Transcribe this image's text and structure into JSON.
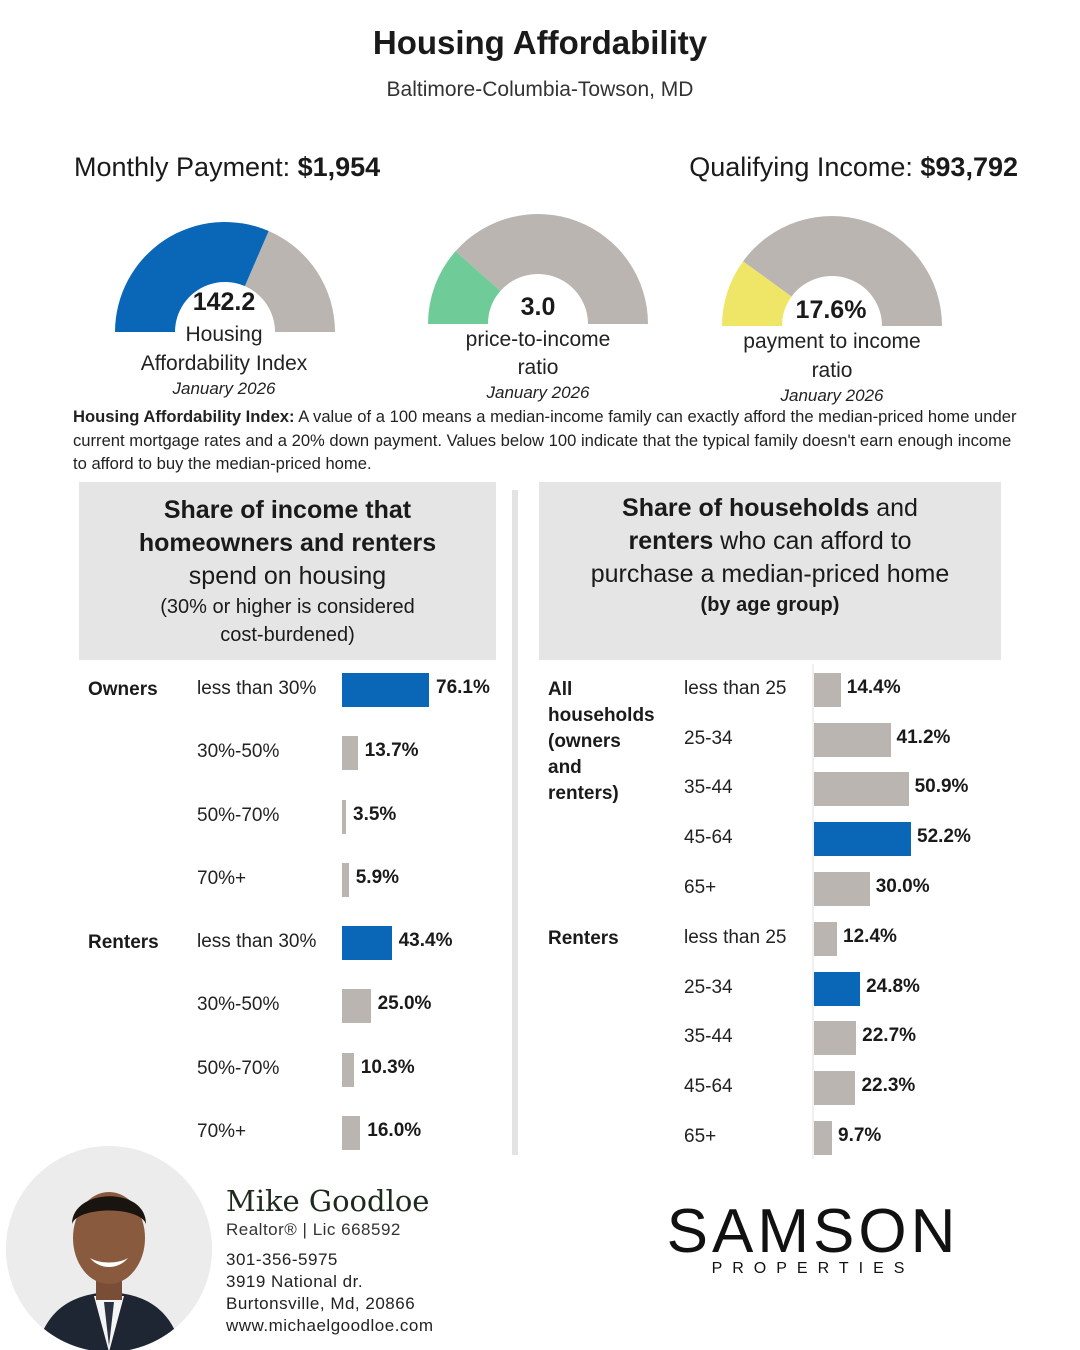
{
  "header": {
    "title": "Housing Affordability",
    "subtitle": "Baltimore-Columbia-Towson, MD"
  },
  "kpis": {
    "payment_label": "Monthly Payment:",
    "payment_value": "$1,954",
    "income_label": "Qualifying Income:",
    "income_value": "$93,792"
  },
  "gauges": [
    {
      "value_text": "142.2",
      "label_line1": "Housing",
      "label_line2": "Affordability Index",
      "date": "January 2026",
      "fill_fraction": 0.63,
      "fill_color": "#0a67b8",
      "track_color": "#bbb5b1"
    },
    {
      "value_text": "3.0",
      "label_line1": "price-to-income",
      "label_line2": "ratio",
      "date": "January 2026",
      "fill_fraction": 0.23,
      "fill_color": "#6fcb98",
      "track_color": "#bbb5b1"
    },
    {
      "value_text": "17.6%",
      "label_line1": "payment to income",
      "label_line2": "ratio",
      "date": "January 2026",
      "fill_fraction": 0.2,
      "fill_color": "#efe667",
      "track_color": "#bbb5b1"
    }
  ],
  "note": {
    "term": "Housing Affordability Index:",
    "text": " A value of a 100 means a median-income family can exactly afford the median-priced home under current mortgage rates and a 20% down payment. Values below 100 indicate that the typical family doesn't earn enough income to afford to buy the median-priced home."
  },
  "left_panel": {
    "head_bold_1": "Share of income that",
    "head_bold_2": "homeowners and renters",
    "head_norm": "spend on housing",
    "head_small_1": "(30% or higher is considered",
    "head_small_2": "cost-burdened)"
  },
  "right_panel": {
    "head_bold_1": "Share of households",
    "head_norm_1": " and",
    "head_bold_2": "renters",
    "head_norm_2": " who can afford to",
    "head_norm_3": "purchase a median-priced home",
    "head_bold_3": "(by age group)"
  },
  "colors": {
    "highlight": "#0a67b8",
    "bar": "#bbb5b1"
  },
  "chart_data": [
    {
      "type": "bar",
      "orientation": "horizontal",
      "title": "Share of income that homeowners and renters spend on housing",
      "categories": [
        "less than 30%",
        "30%-50%",
        "50%-70%",
        "70%+"
      ],
      "unit": "%",
      "groups": [
        {
          "name": "Owners",
          "values": [
            76.1,
            13.7,
            3.5,
            5.9
          ],
          "labels": [
            "76.1%",
            "13.7%",
            "3.5%",
            "5.9%"
          ],
          "highlight_index": 0
        },
        {
          "name": "Renters",
          "values": [
            43.4,
            25.0,
            10.3,
            16.0
          ],
          "labels": [
            "43.4%",
            "25.0%",
            "10.3%",
            "16.0%"
          ],
          "highlight_index": 0
        }
      ]
    },
    {
      "type": "bar",
      "orientation": "horizontal",
      "title": "Share of households and renters who can afford to purchase a median-priced home (by age group)",
      "categories": [
        "less than 25",
        "25-34",
        "35-44",
        "45-64",
        "65+"
      ],
      "unit": "%",
      "groups": [
        {
          "name": "All households (owners and renters)",
          "name_lines": [
            "All",
            "households",
            "(owners",
            "and",
            "renters)"
          ],
          "values": [
            14.4,
            41.2,
            50.9,
            52.2,
            30.0
          ],
          "labels": [
            "14.4%",
            "41.2%",
            "50.9%",
            "52.2%",
            "30.0%"
          ],
          "highlight_index": 3
        },
        {
          "name": "Renters",
          "name_lines": [
            "Renters"
          ],
          "values": [
            12.4,
            24.8,
            22.7,
            22.3,
            9.7
          ],
          "labels": [
            "12.4%",
            "24.8%",
            "22.7%",
            "22.3%",
            "9.7%"
          ],
          "highlight_index": 1
        }
      ]
    }
  ],
  "footer": {
    "agent_name": "Mike Goodloe",
    "agent_title": "Realtor® | Lic 668592",
    "phone": "301-356-5975",
    "address_1": "3919 National dr.",
    "address_2": "Burtonsville, Md, 20866",
    "website": "www.michaelgoodloe.com",
    "brand": "SAMSON",
    "brand_sub": "PROPERTIES"
  }
}
